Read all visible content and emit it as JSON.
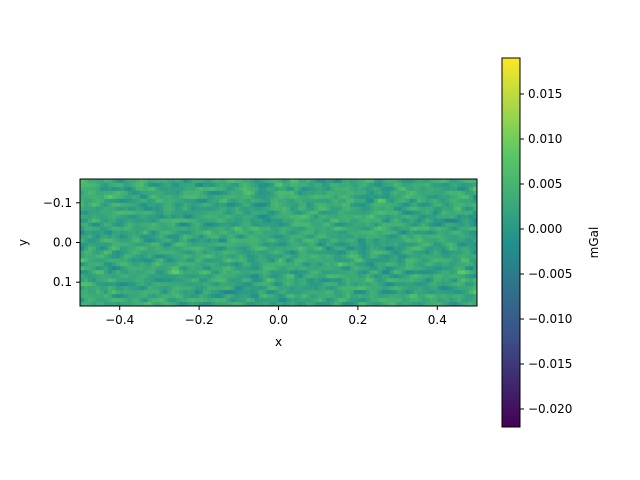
{
  "chart_data": {
    "type": "heatmap",
    "title": "",
    "xlabel": "x",
    "ylabel": "y",
    "xlim": [
      -0.5,
      0.5
    ],
    "ylim": [
      0.16,
      -0.16
    ],
    "y_inverted": true,
    "x_ticks": [
      -0.4,
      -0.2,
      0.0,
      0.2,
      0.4
    ],
    "x_tick_labels": [
      "−0.4",
      "−0.2",
      "0.0",
      "0.2",
      "0.4"
    ],
    "y_ticks": [
      -0.1,
      0.0,
      0.1
    ],
    "y_tick_labels": [
      "−0.1",
      "0.0",
      "0.1"
    ],
    "grid": false,
    "colormap": "viridis",
    "colorbar": {
      "label": "mGal",
      "range": [
        -0.022,
        0.019
      ],
      "ticks": [
        0.015,
        0.01,
        0.005,
        0.0,
        -0.005,
        -0.01,
        -0.015,
        -0.02
      ],
      "tick_labels": [
        "0.015",
        "0.010",
        "0.005",
        "0.000",
        "−0.005",
        "−0.010",
        "−0.015",
        "−0.020"
      ]
    },
    "colors": [
      "#440154",
      "#3b528b",
      "#21918c",
      "#5ec962",
      "#fde725"
    ],
    "field_description": "random noise grid, values mostly between -0.005 and 0.010"
  }
}
